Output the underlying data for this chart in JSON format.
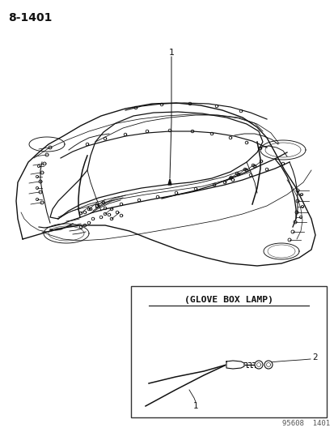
{
  "title_label": "8-1401",
  "callout_title": "(GLOVE BOX LAMP)",
  "footer": "95608  1401",
  "bg_color": "#ffffff",
  "line_color": "#111111",
  "box_border_color": "#222222",
  "title_fontsize": 10,
  "label_fontsize": 8,
  "footer_fontsize": 6.5
}
